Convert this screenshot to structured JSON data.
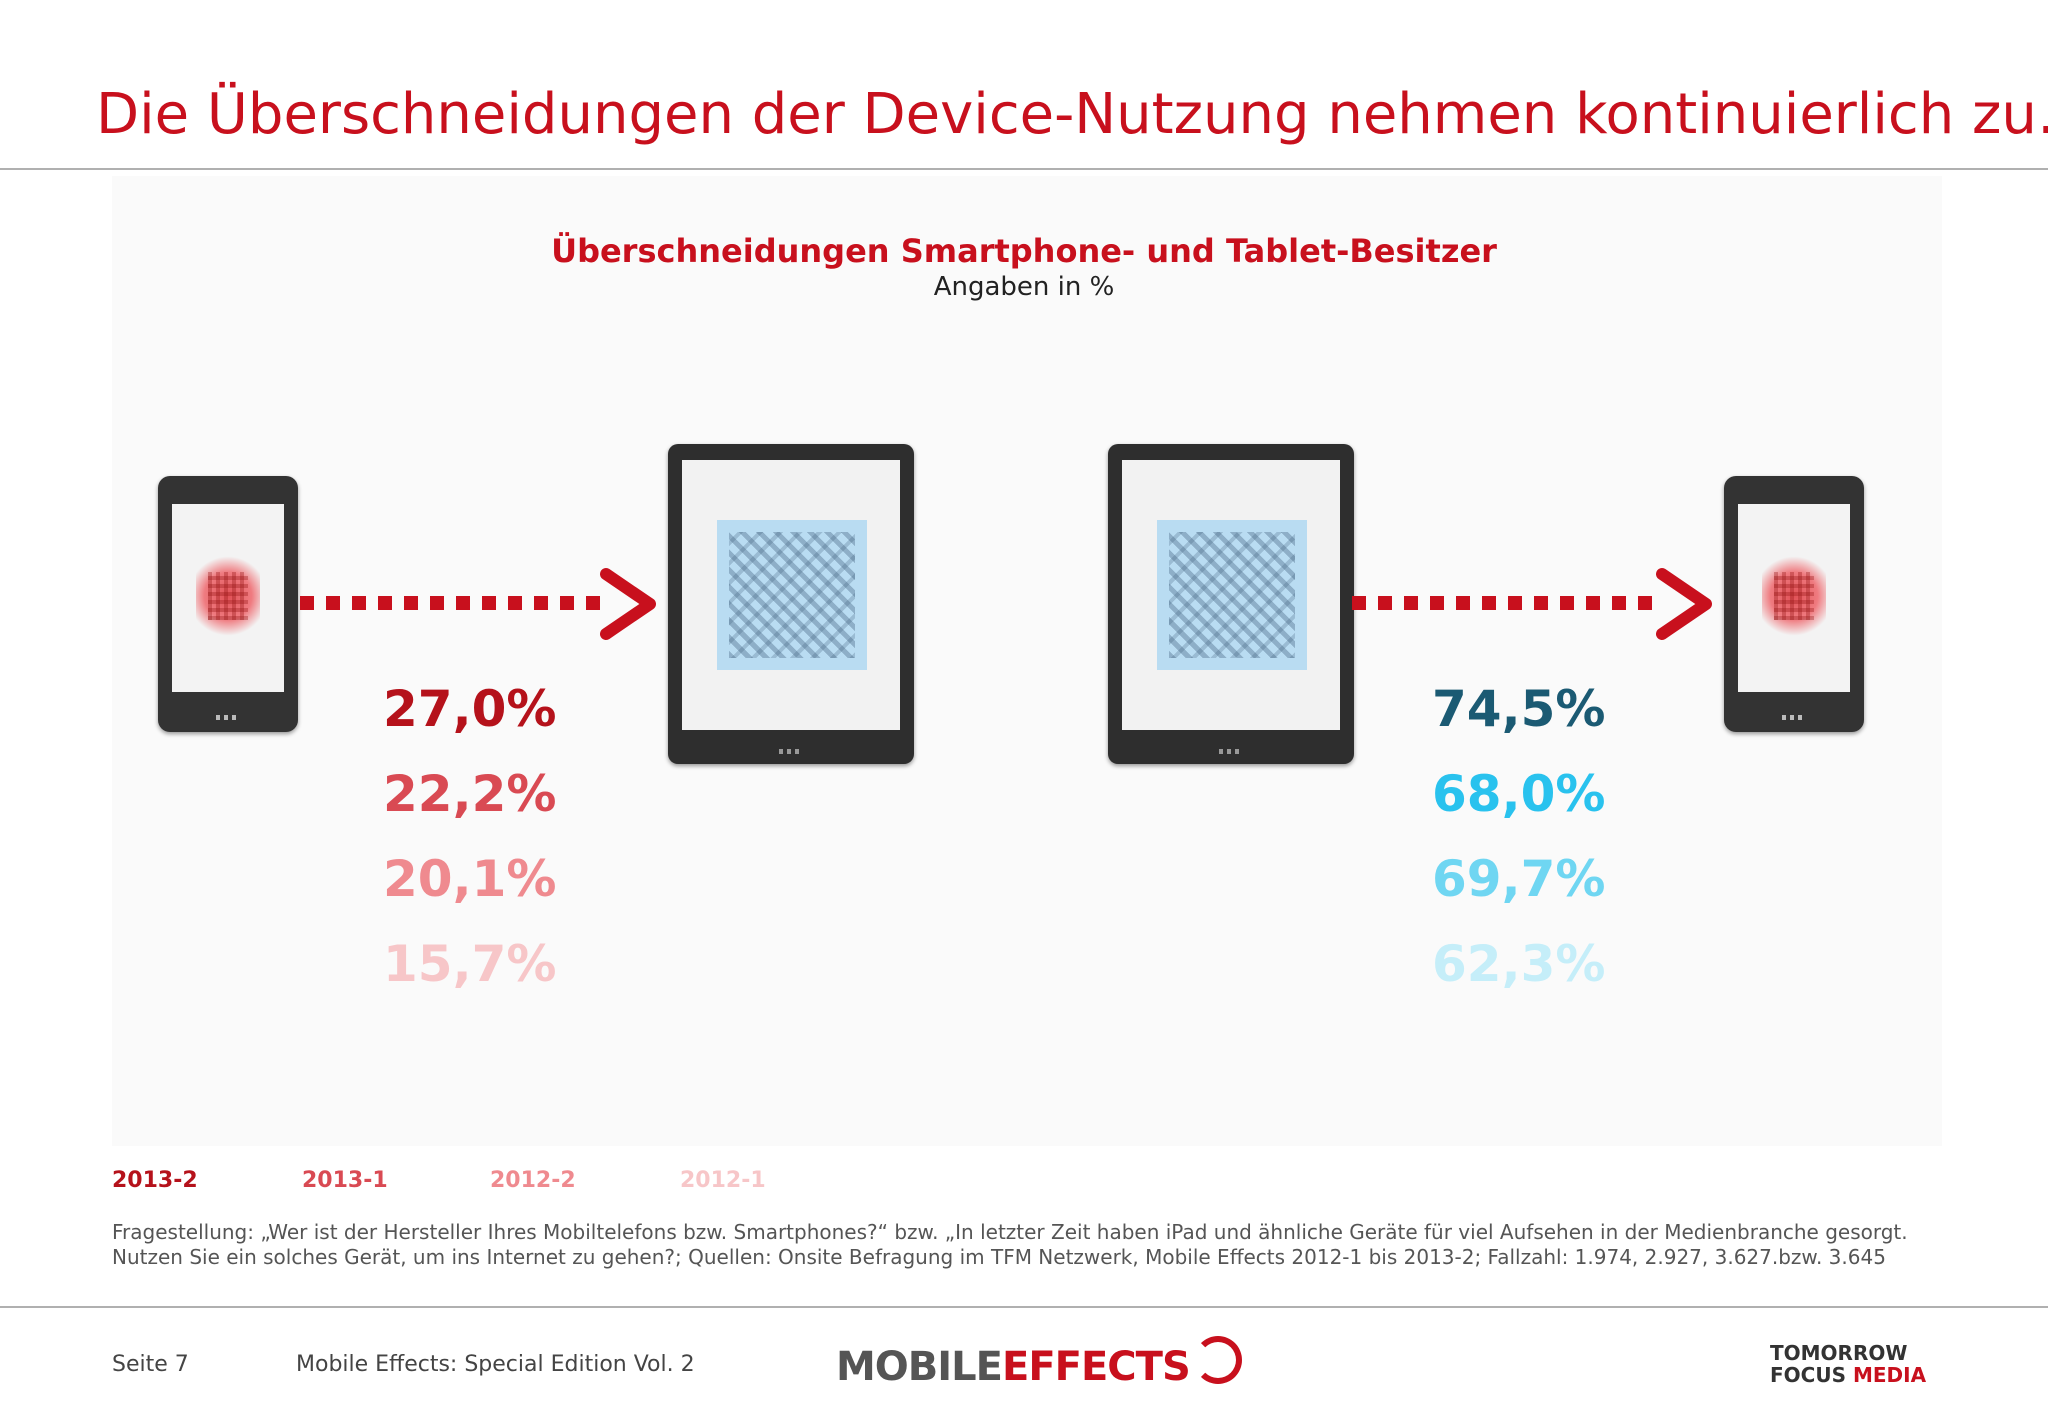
{
  "slide": {
    "title": "Die Überschneidungen der Device-Nutzung nehmen kontinuierlich zu…"
  },
  "chart_data": {
    "type": "table",
    "title": "Überschneidungen Smartphone- und Tablet-Besitzer",
    "subtitle": "Angaben in %",
    "categories": [
      "2013-2",
      "2013-1",
      "2012-2",
      "2012-1"
    ],
    "series": [
      {
        "values": [
          27.0,
          22.2,
          20.1,
          15.7
        ],
        "labels": [
          "27,0%",
          "22,2%",
          "20,1%",
          "15,7%"
        ],
        "colors": [
          "#b5121b",
          "#d94a53",
          "#ef8a8f",
          "#f7c6c8"
        ]
      },
      {
        "values": [
          74.5,
          68.0,
          69.7,
          62.3
        ],
        "labels": [
          "74,5%",
          "68,0%",
          "69,7%",
          "62,3%"
        ],
        "colors": [
          "#1b5a73",
          "#29c2ee",
          "#6fd6f2",
          "#c5eef9"
        ]
      }
    ],
    "legend_colors": [
      "#b5121b",
      "#d94a53",
      "#ef8a8f",
      "#f7c6c8"
    ]
  },
  "footnote": "Fragestellung: „Wer ist der Hersteller Ihres Mobiltelefons bzw. Smartphones?“ bzw. „In letzter Zeit haben iPad und ähnliche Geräte für viel Aufsehen in der Medienbranche gesorgt. Nutzen Sie ein solches Gerät, um ins Internet zu gehen?; Quellen: Onsite Befragung im TFM Netzwerk, Mobile Effects 2012-1 bis 2013-2; Fallzahl: 1.974, 2.927, 3.627.bzw. 3.645",
  "footer": {
    "page": "Seite 7",
    "edition": "Mobile Effects: Special Edition Vol. 2",
    "logo_left": "MOBILE",
    "logo_right": "EFFECTS",
    "tfm_line1": "TOMORROW",
    "tfm_line2a": "FOCUS",
    "tfm_line2b": "MEDIA"
  },
  "icons": {
    "phone": "smartphone-icon",
    "tablet": "tablet-icon",
    "arrow": "dotted-arrow-icon"
  }
}
